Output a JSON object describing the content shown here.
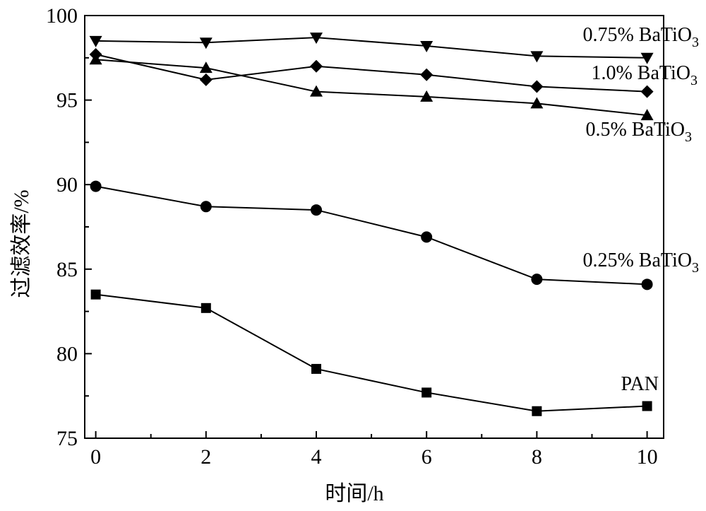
{
  "chart_data": {
    "type": "line",
    "title": "",
    "xlabel": "时间/h",
    "ylabel": "过滤效率/%",
    "xlim": [
      -0.2,
      10.3
    ],
    "ylim": [
      75,
      100
    ],
    "xticks": [
      0,
      2,
      4,
      6,
      8,
      10
    ],
    "yticks": [
      75,
      80,
      85,
      90,
      95,
      100
    ],
    "x": [
      0,
      2,
      4,
      6,
      8,
      10
    ],
    "grid": false,
    "legend": "inline labels at right end of each line",
    "series": [
      {
        "name": "0.75% BaTiO₃",
        "label_main": "0.75% BaTiO",
        "label_sub": "3",
        "marker": "triangle-down",
        "values": [
          98.5,
          98.4,
          98.7,
          98.2,
          97.6,
          97.5
        ]
      },
      {
        "name": "1.0% BaTiO₃",
        "label_main": "1.0% BaTiO",
        "label_sub": "3",
        "marker": "diamond",
        "values": [
          97.7,
          96.2,
          97.0,
          96.5,
          95.8,
          95.5
        ]
      },
      {
        "name": "0.5% BaTiO₃",
        "label_main": "0.5% BaTiO",
        "label_sub": "3",
        "marker": "triangle-up",
        "values": [
          97.4,
          96.9,
          95.5,
          95.2,
          94.8,
          94.1
        ]
      },
      {
        "name": "0.25% BaTiO₃",
        "label_main": "0.25% BaTiO",
        "label_sub": "3",
        "marker": "circle",
        "values": [
          89.9,
          88.7,
          88.5,
          86.9,
          84.4,
          84.1
        ]
      },
      {
        "name": "PAN",
        "label_main": "PAN",
        "label_sub": "",
        "marker": "square",
        "values": [
          83.5,
          82.7,
          79.1,
          77.7,
          76.6,
          76.9
        ]
      }
    ],
    "colors": {
      "line": "#000000",
      "marker": "#000000",
      "background": "#ffffff"
    }
  }
}
